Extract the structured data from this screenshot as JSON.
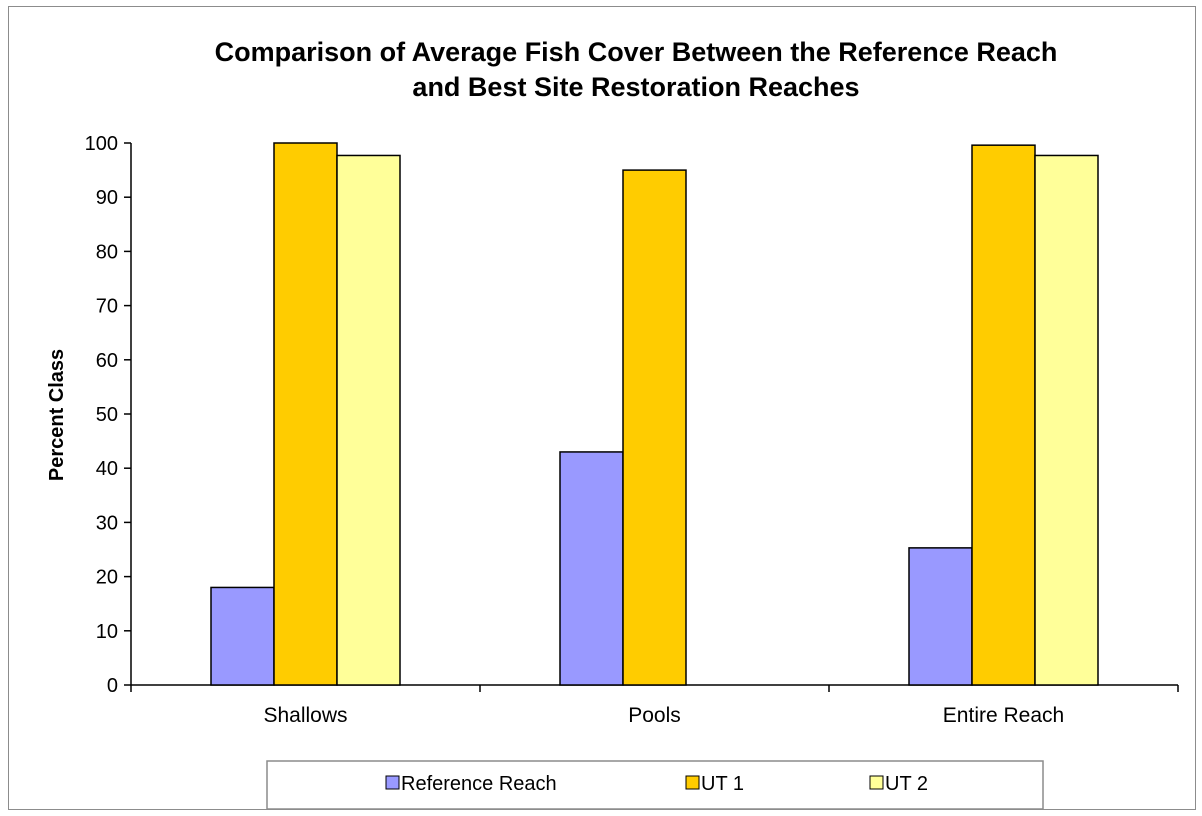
{
  "chart_data": {
    "type": "bar",
    "title_lines": [
      "Comparison of Average Fish Cover Between the Reference Reach",
      "and Best Site Restoration Reaches"
    ],
    "xlabel": "",
    "ylabel": "Percent Class",
    "ylim": [
      0,
      100
    ],
    "yticks": [
      0,
      10,
      20,
      30,
      40,
      50,
      60,
      70,
      80,
      90,
      100
    ],
    "categories": [
      "Shallows",
      "Pools",
      "Entire Reach"
    ],
    "series": [
      {
        "name": "Reference Reach",
        "color": "#9999ff",
        "values": [
          18,
          43,
          25.3
        ]
      },
      {
        "name": "UT 1",
        "color": "#ffcc00",
        "values": [
          100,
          95,
          99.6
        ]
      },
      {
        "name": "UT 2",
        "color": "#ffff99",
        "values": [
          97.7,
          null,
          97.7
        ]
      }
    ],
    "grid": false,
    "legend_position": "bottom"
  }
}
